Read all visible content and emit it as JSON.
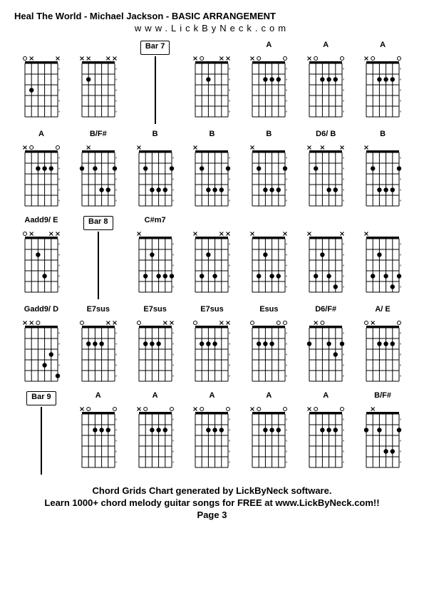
{
  "title": "Heal The World - Michael Jackson - BASIC ARRANGEMENT",
  "url": "www.LickByNeck.com",
  "footer_line1": "Chord Grids Chart generated by LickByNeck software.",
  "footer_line2": "Learn 1000+ chord melody guitar songs for FREE at www.LickByNeck.com!!",
  "page": "Page 3",
  "style": {
    "bg": "#ffffff",
    "fg": "#000000",
    "chord_width": 62,
    "chord_height": 95,
    "frets": 5,
    "strings": 6,
    "dot_radius": 3.2,
    "line_width": 1
  },
  "cells": [
    {
      "type": "chord",
      "label": "",
      "top": [
        "o",
        "x",
        "",
        "",
        "",
        "x"
      ],
      "dots": [
        [
          3,
          2
        ]
      ],
      "barre": null
    },
    {
      "type": "chord",
      "label": "",
      "top": [
        "x",
        "x",
        "",
        "",
        "x",
        "x"
      ],
      "dots": [
        [
          2,
          2
        ]
      ],
      "barre": null
    },
    {
      "type": "bar",
      "label": "Bar 7",
      "boxed": true
    },
    {
      "type": "chord",
      "label": "",
      "top": [
        "x",
        "o",
        "",
        "",
        "x",
        "x"
      ],
      "dots": [
        [
          2,
          3
        ]
      ],
      "barre": null
    },
    {
      "type": "chord",
      "label": "A",
      "top": [
        "x",
        "o",
        "",
        "",
        "",
        "o"
      ],
      "dots": [
        [
          2,
          3
        ],
        [
          2,
          4
        ],
        [
          2,
          5
        ]
      ],
      "barre": null
    },
    {
      "type": "chord",
      "label": "A",
      "top": [
        "x",
        "o",
        "",
        "",
        "",
        "o"
      ],
      "dots": [
        [
          2,
          3
        ],
        [
          2,
          4
        ],
        [
          2,
          5
        ]
      ],
      "barre": null
    },
    {
      "type": "chord",
      "label": "A",
      "top": [
        "x",
        "o",
        "",
        "",
        "",
        "o"
      ],
      "dots": [
        [
          2,
          3
        ],
        [
          2,
          4
        ],
        [
          2,
          5
        ]
      ],
      "barre": null
    },
    {
      "type": "chord",
      "label": "A",
      "top": [
        "x",
        "o",
        "",
        "",
        "",
        "o"
      ],
      "dots": [
        [
          2,
          3
        ],
        [
          2,
          4
        ],
        [
          2,
          5
        ]
      ],
      "barre": null
    },
    {
      "type": "chord",
      "label": "B/F#",
      "top": [
        "",
        "x",
        "",
        "",
        "",
        ""
      ],
      "dots": [
        [
          2,
          1
        ],
        [
          2,
          3
        ],
        [
          4,
          4
        ],
        [
          4,
          5
        ],
        [
          2,
          6
        ]
      ],
      "barre": null
    },
    {
      "type": "chord",
      "label": "B",
      "top": [
        "x",
        "",
        "",
        "",
        "",
        ""
      ],
      "dots": [
        [
          2,
          2
        ],
        [
          4,
          3
        ],
        [
          4,
          4
        ],
        [
          4,
          5
        ],
        [
          2,
          6
        ]
      ],
      "barre": null
    },
    {
      "type": "chord",
      "label": "B",
      "top": [
        "x",
        "",
        "",
        "",
        "",
        ""
      ],
      "dots": [
        [
          2,
          2
        ],
        [
          4,
          3
        ],
        [
          4,
          4
        ],
        [
          4,
          5
        ],
        [
          2,
          6
        ]
      ],
      "barre": null
    },
    {
      "type": "chord",
      "label": "B",
      "top": [
        "x",
        "",
        "",
        "",
        "",
        ""
      ],
      "dots": [
        [
          2,
          2
        ],
        [
          4,
          3
        ],
        [
          4,
          4
        ],
        [
          4,
          5
        ],
        [
          2,
          6
        ]
      ],
      "barre": null
    },
    {
      "type": "chord",
      "label": "D6/ B",
      "top": [
        "x",
        "",
        "x",
        "",
        "",
        "x"
      ],
      "dots": [
        [
          2,
          2
        ],
        [
          4,
          4
        ],
        [
          4,
          5
        ]
      ],
      "barre": null
    },
    {
      "type": "chord",
      "label": "B",
      "top": [
        "x",
        "",
        "",
        "",
        "",
        ""
      ],
      "dots": [
        [
          2,
          2
        ],
        [
          4,
          3
        ],
        [
          4,
          4
        ],
        [
          4,
          5
        ],
        [
          2,
          6
        ]
      ],
      "barre": null
    },
    {
      "type": "chord",
      "label": "Aadd9/ E",
      "top": [
        "o",
        "x",
        "",
        "",
        "x",
        "x"
      ],
      "dots": [
        [
          2,
          3
        ],
        [
          4,
          4
        ]
      ],
      "barre": null
    },
    {
      "type": "bar",
      "label": "Bar 8",
      "boxed": true
    },
    {
      "type": "chord",
      "label": "C#m7",
      "top": [
        "x",
        "",
        "",
        "",
        "",
        ""
      ],
      "dots": [
        [
          4,
          2
        ],
        [
          2,
          3
        ],
        [
          4,
          4
        ],
        [
          4,
          5
        ],
        [
          4,
          6
        ]
      ],
      "barre": null
    },
    {
      "type": "chord",
      "label": "",
      "top": [
        "x",
        "",
        "",
        "",
        "x",
        "x"
      ],
      "dots": [
        [
          4,
          2
        ],
        [
          2,
          3
        ],
        [
          4,
          4
        ]
      ],
      "barre": null
    },
    {
      "type": "chord",
      "label": "",
      "top": [
        "x",
        "",
        "",
        "",
        "",
        "x"
      ],
      "dots": [
        [
          4,
          2
        ],
        [
          2,
          3
        ],
        [
          4,
          4
        ],
        [
          4,
          5
        ]
      ],
      "barre": null
    },
    {
      "type": "chord",
      "label": "",
      "top": [
        "x",
        "",
        "",
        "",
        "",
        "x"
      ],
      "dots": [
        [
          4,
          2
        ],
        [
          2,
          3
        ],
        [
          4,
          4
        ],
        [
          5,
          5
        ]
      ],
      "barre": null
    },
    {
      "type": "chord",
      "label": "",
      "top": [
        "x",
        "",
        "",
        "",
        "",
        ""
      ],
      "dots": [
        [
          4,
          2
        ],
        [
          2,
          3
        ],
        [
          4,
          4
        ],
        [
          5,
          5
        ],
        [
          4,
          6
        ]
      ],
      "barre": null
    },
    {
      "type": "chord",
      "label": "Gadd9/ D",
      "top": [
        "x",
        "x",
        "o",
        "",
        "",
        ""
      ],
      "dots": [
        [
          4,
          4
        ],
        [
          3,
          5
        ],
        [
          5,
          6
        ]
      ],
      "barre": null
    },
    {
      "type": "chord",
      "label": "E7sus",
      "top": [
        "o",
        "",
        "",
        "",
        "x",
        "x"
      ],
      "dots": [
        [
          2,
          2
        ],
        [
          2,
          3
        ],
        [
          2,
          4
        ]
      ],
      "barre": null
    },
    {
      "type": "chord",
      "label": "E7sus",
      "top": [
        "o",
        "",
        "",
        "",
        "x",
        "x"
      ],
      "dots": [
        [
          2,
          2
        ],
        [
          2,
          3
        ],
        [
          2,
          4
        ]
      ],
      "barre": null
    },
    {
      "type": "chord",
      "label": "E7sus",
      "top": [
        "o",
        "",
        "",
        "",
        "x",
        "x"
      ],
      "dots": [
        [
          2,
          2
        ],
        [
          2,
          3
        ],
        [
          2,
          4
        ]
      ],
      "barre": null
    },
    {
      "type": "chord",
      "label": "Esus",
      "top": [
        "o",
        "",
        "",
        "",
        "o",
        "o"
      ],
      "dots": [
        [
          2,
          2
        ],
        [
          2,
          3
        ],
        [
          2,
          4
        ]
      ],
      "barre": null
    },
    {
      "type": "chord",
      "label": "D6/F#",
      "top": [
        "",
        "x",
        "o",
        "",
        "",
        ""
      ],
      "dots": [
        [
          2,
          1
        ],
        [
          2,
          4
        ],
        [
          3,
          5
        ],
        [
          2,
          6
        ]
      ],
      "barre": null
    },
    {
      "type": "chord",
      "label": "A/ E",
      "top": [
        "o",
        "x",
        "",
        "",
        "",
        "o"
      ],
      "dots": [
        [
          2,
          3
        ],
        [
          2,
          4
        ],
        [
          2,
          5
        ]
      ],
      "barre": null
    },
    {
      "type": "bar",
      "label": "Bar 9",
      "boxed": true
    },
    {
      "type": "chord",
      "label": "A",
      "top": [
        "x",
        "o",
        "",
        "",
        "",
        "o"
      ],
      "dots": [
        [
          2,
          3
        ],
        [
          2,
          4
        ],
        [
          2,
          5
        ]
      ],
      "barre": null
    },
    {
      "type": "chord",
      "label": "A",
      "top": [
        "x",
        "o",
        "",
        "",
        "",
        "o"
      ],
      "dots": [
        [
          2,
          3
        ],
        [
          2,
          4
        ],
        [
          2,
          5
        ]
      ],
      "barre": null
    },
    {
      "type": "chord",
      "label": "A",
      "top": [
        "x",
        "o",
        "",
        "",
        "",
        "o"
      ],
      "dots": [
        [
          2,
          3
        ],
        [
          2,
          4
        ],
        [
          2,
          5
        ]
      ],
      "barre": null
    },
    {
      "type": "chord",
      "label": "A",
      "top": [
        "x",
        "o",
        "",
        "",
        "",
        "o"
      ],
      "dots": [
        [
          2,
          3
        ],
        [
          2,
          4
        ],
        [
          2,
          5
        ]
      ],
      "barre": null
    },
    {
      "type": "chord",
      "label": "A",
      "top": [
        "x",
        "o",
        "",
        "",
        "",
        "o"
      ],
      "dots": [
        [
          2,
          3
        ],
        [
          2,
          4
        ],
        [
          2,
          5
        ]
      ],
      "barre": null
    },
    {
      "type": "chord",
      "label": "B/F#",
      "top": [
        "",
        "x",
        "",
        "",
        "",
        ""
      ],
      "dots": [
        [
          2,
          1
        ],
        [
          2,
          3
        ],
        [
          4,
          4
        ],
        [
          4,
          5
        ],
        [
          2,
          6
        ]
      ],
      "barre": null
    }
  ]
}
